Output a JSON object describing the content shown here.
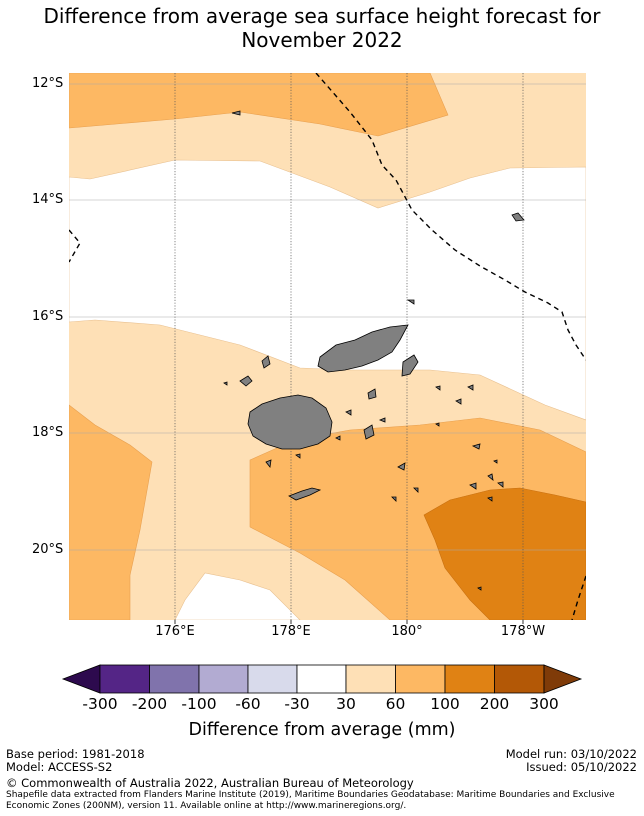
{
  "title_line1": "Difference from average sea surface height forecast for",
  "title_line2": "November 2022",
  "y_labels": [
    "12°S",
    "14°S",
    "16°S",
    "18°S",
    "20°S"
  ],
  "x_labels": [
    "176°E",
    "178°E",
    "180°",
    "178°W"
  ],
  "colorbar": {
    "ticks": [
      "-300",
      "-200",
      "-100",
      "-60",
      "-30",
      "30",
      "60",
      "100",
      "200",
      "300"
    ],
    "colors": [
      "#2d0a4e",
      "#542586",
      "#8073ac",
      "#b2abd2",
      "#d8daeb",
      "#ffffff",
      "#fee0b6",
      "#fdb863",
      "#e08214",
      "#b35806",
      "#7f3b08"
    ],
    "label": "Difference from average (mm)"
  },
  "footer": {
    "base_period": "Base period: 1981-2018",
    "model": "Model: ACCESS-S2",
    "model_run": "Model run: 03/10/2022",
    "issued": "Issued: 05/10/2022",
    "copyright": "© Commonwealth of Australia 2022, Australian Bureau of Meteorology",
    "shapefile": "Shapefile data extracted from Flanders Marine Institute (2019), Maritime Boundaries Geodatabase: Maritime Boundaries and Exclusive Economic Zones (200NM), version 11. Available online at http://www.marineregions.org/."
  }
}
